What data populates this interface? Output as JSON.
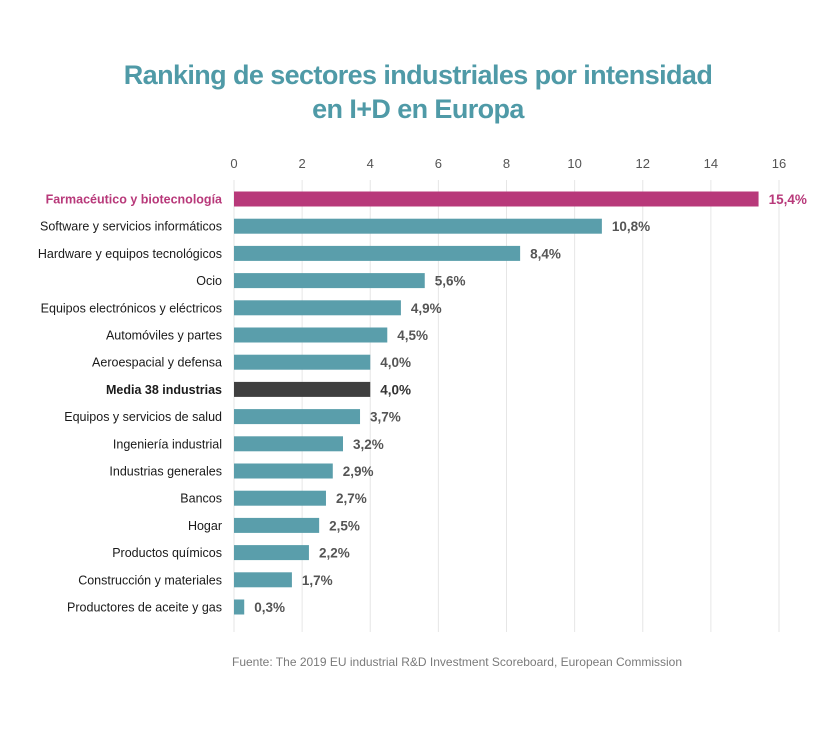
{
  "chart_title": {
    "line1": "Ranking de sectores industriales por intensidad",
    "line2": "en I+D en Europa"
  },
  "source": "Fuente: The 2019 EU industrial R&D Investment Scoreboard, European Commission",
  "colors": {
    "title": "#4f9aa7",
    "default_bar": "#5a9eab",
    "highlight_bar": "#b8397a",
    "average_bar": "#3f3f3f",
    "label_text": "#1a1a1a",
    "value_text": "#555555",
    "highlight_text": "#b8397a",
    "average_text": "#333333",
    "grid": "#e6e6e6",
    "tick_text": "#555555"
  },
  "chart_data": {
    "type": "bar",
    "orientation": "horizontal",
    "title": "Ranking de sectores industriales por intensidad en I+D en Europa",
    "xlim": [
      0,
      16
    ],
    "xticks": [
      "0",
      "2",
      "4",
      "6",
      "8",
      "10",
      "12",
      "14",
      "16"
    ],
    "tick_values": [
      0,
      2,
      4,
      6,
      8,
      10,
      12,
      14,
      16
    ],
    "grid": true,
    "categories": [
      "Farmacéutico y biotecnología",
      "Software y servicios informáticos",
      "Hardware y equipos tecnológicos",
      "Ocio",
      "Equipos electrónicos y eléctricos",
      "Automóviles y partes",
      "Aeroespacial y defensa",
      "Media 38 industrias",
      "Equipos y servicios de salud",
      "Ingeniería industrial",
      "Industrias generales",
      "Bancos",
      "Hogar",
      "Productos químicos",
      "Construcción y materiales",
      "Productores de aceite y gas"
    ],
    "values": [
      15.4,
      10.8,
      8.4,
      5.6,
      4.9,
      4.5,
      4.0,
      4.0,
      3.7,
      3.2,
      2.9,
      2.7,
      2.5,
      2.2,
      1.7,
      0.3
    ],
    "value_labels": [
      "15,4%",
      "10,8%",
      "8,4%",
      "5,6%",
      "4,9%",
      "4,5%",
      "4,0%",
      "4,0%",
      "3,7%",
      "3,2%",
      "2,9%",
      "2,7%",
      "2,5%",
      "2,2%",
      "1,7%",
      "0,3%"
    ],
    "styles": [
      "highlight",
      "default",
      "default",
      "default",
      "default",
      "default",
      "default",
      "average",
      "default",
      "default",
      "default",
      "default",
      "default",
      "default",
      "default",
      "default"
    ]
  }
}
